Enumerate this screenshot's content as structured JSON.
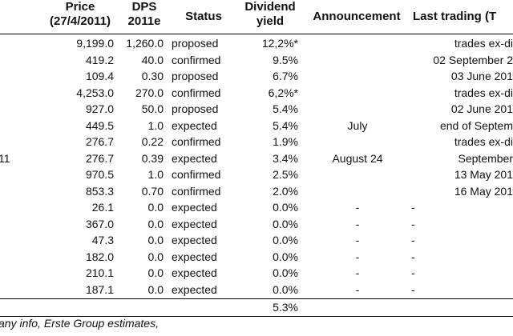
{
  "header": {
    "price_line1": "Price",
    "price_line2": "(27/4/2011)",
    "dps_line1": "DPS",
    "dps_line2": "2011e",
    "status": "Status",
    "yield_line1": "Dividend",
    "yield_line2": "yield",
    "announcement": "Announcement",
    "last_trading": "Last trading (T"
  },
  "rows": [
    {
      "name": "",
      "price": "9,199.0",
      "dps": "1,260.0",
      "status": "proposed",
      "yield": "12,2%*",
      "announcement": "",
      "last_trading": "trades ex-di",
      "dash2": ""
    },
    {
      "name": "",
      "price": "419.2",
      "dps": "40.0",
      "status": "confirmed",
      "yield": "9.5%",
      "announcement": "",
      "last_trading": "02 September 2",
      "dash2": ""
    },
    {
      "name": "",
      "price": "109.4",
      "dps": "0.30",
      "status": "proposed",
      "yield": "6.7%",
      "announcement": "",
      "last_trading": "03 June 201",
      "dash2": ""
    },
    {
      "name": "",
      "price": "4,253.0",
      "dps": "270.0",
      "status": "confirmed",
      "yield": "6,2%*",
      "announcement": "",
      "last_trading": "trades ex-di",
      "dash2": ""
    },
    {
      "name": "",
      "price": "927.0",
      "dps": "50.0",
      "status": "proposed",
      "yield": "5.4%",
      "announcement": "",
      "last_trading": "02 June 201",
      "dash2": ""
    },
    {
      "name": "",
      "price": "449.5",
      "dps": "1.0",
      "status": "expected",
      "yield": "5.4%",
      "announcement": "July",
      "last_trading": "end of Septem",
      "dash2": ""
    },
    {
      "name": "",
      "price": "276.7",
      "dps": "0.22",
      "status": "confirmed",
      "yield": "1.9%",
      "announcement": "",
      "last_trading": "trades ex-di",
      "dash2": ""
    },
    {
      "name": "11",
      "price": "276.7",
      "dps": "0.39",
      "status": "expected",
      "yield": "3.4%",
      "announcement": "August 24",
      "last_trading": "September",
      "dash2": ""
    },
    {
      "name": "",
      "price": "970.5",
      "dps": "1.0",
      "status": "confirmed",
      "yield": "2.5%",
      "announcement": "",
      "last_trading": "13 May 201",
      "dash2": ""
    },
    {
      "name": "",
      "price": "853.3",
      "dps": "0.70",
      "status": "confirmed",
      "yield": "2.0%",
      "announcement": "",
      "last_trading": "16 May 201",
      "dash2": ""
    },
    {
      "name": "",
      "price": "26.1",
      "dps": "0.0",
      "status": "expected",
      "yield": "0.0%",
      "announcement": "-",
      "last_trading": "",
      "dash2": "-"
    },
    {
      "name": "",
      "price": "367.0",
      "dps": "0.0",
      "status": "expected",
      "yield": "0.0%",
      "announcement": "-",
      "last_trading": "",
      "dash2": "-"
    },
    {
      "name": "",
      "price": "47.3",
      "dps": "0.0",
      "status": "expected",
      "yield": "0.0%",
      "announcement": "-",
      "last_trading": "",
      "dash2": "-"
    },
    {
      "name": "",
      "price": "182.0",
      "dps": "0.0",
      "status": "expected",
      "yield": "0.0%",
      "announcement": "-",
      "last_trading": "",
      "dash2": "-"
    },
    {
      "name": "",
      "price": "210.1",
      "dps": "0.0",
      "status": "expected",
      "yield": "0.0%",
      "announcement": "-",
      "last_trading": "",
      "dash2": "-"
    },
    {
      "name": "",
      "price": "187.1",
      "dps": "0.0",
      "status": "expected",
      "yield": "0.0%",
      "announcement": "-",
      "last_trading": "",
      "dash2": "-"
    }
  ],
  "total_yield": "5.3%",
  "footnote": "any info, Erste Group estimates,"
}
